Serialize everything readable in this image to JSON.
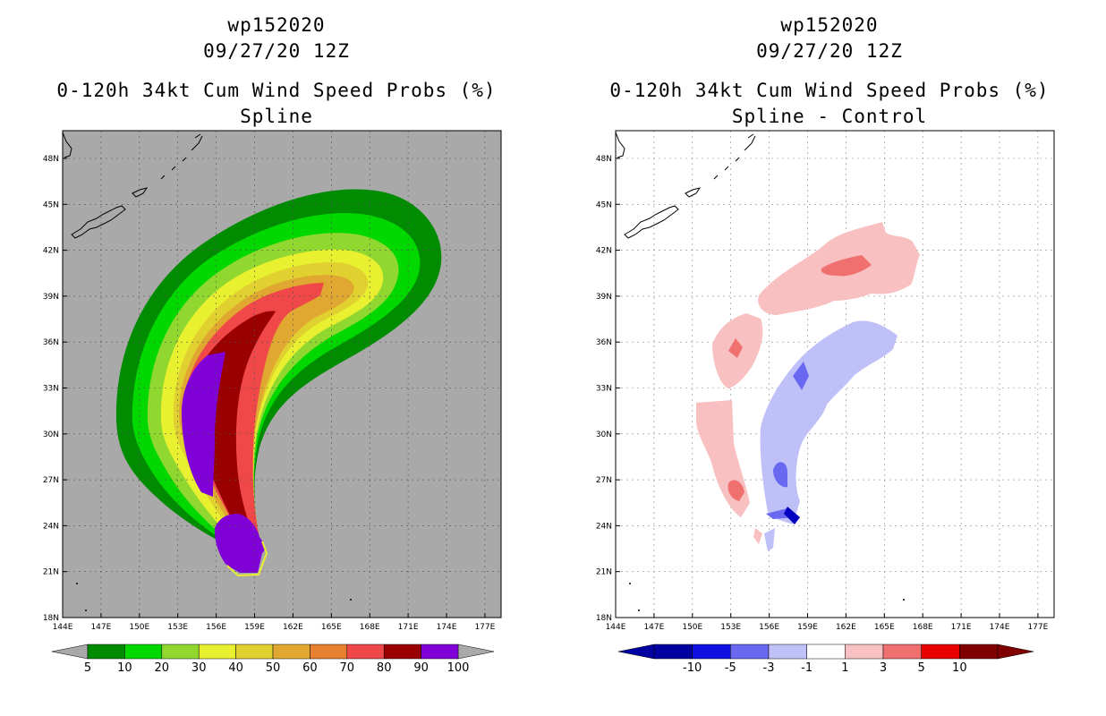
{
  "left": {
    "title_line1": "wp152020",
    "title_line2": "09/27/20 12Z",
    "title_line3": "0-120h 34kt Cum Wind Speed Probs (%)",
    "title_line4": "Spline",
    "background_color": "#a9a9a9",
    "colorbar": {
      "colors": [
        "#008c00",
        "#00d800",
        "#90d830",
        "#e8f030",
        "#e0d030",
        "#e0a830",
        "#e88030",
        "#f04848",
        "#9a0000",
        "#8000d8"
      ],
      "labels": [
        "5",
        "10",
        "20",
        "30",
        "40",
        "50",
        "60",
        "70",
        "80",
        "90",
        "100"
      ]
    }
  },
  "right": {
    "title_line1": "wp152020",
    "title_line2": "09/27/20 12Z",
    "title_line3": "0-120h 34kt Cum Wind Speed Probs (%)",
    "title_line4": "Spline - Control",
    "colorbar": {
      "colors": [
        "#0000a0",
        "#1010e0",
        "#6868f0",
        "#c0c0f8",
        "#ffffff",
        "#f8c0c0",
        "#f07070",
        "#e80000",
        "#800000"
      ],
      "labels": [
        "-10",
        "-5",
        "-3",
        "-1",
        "1",
        "3",
        "5",
        "10"
      ]
    }
  },
  "axes": {
    "x_labels": [
      "144E",
      "147E",
      "150E",
      "153E",
      "156E",
      "159E",
      "162E",
      "165E",
      "168E",
      "171E",
      "174E",
      "177E"
    ],
    "y_labels": [
      "48N",
      "45N",
      "42N",
      "39N",
      "36N",
      "33N",
      "30N",
      "27N",
      "24N",
      "21N",
      "18N"
    ]
  }
}
